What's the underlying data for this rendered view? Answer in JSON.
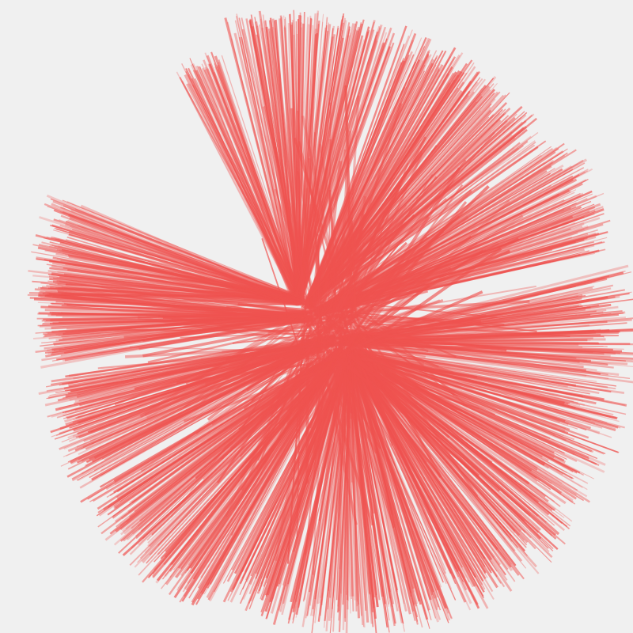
{
  "canvas": {
    "background": "#f0f0f0",
    "stroke_color": "#ef5350"
  }
}
